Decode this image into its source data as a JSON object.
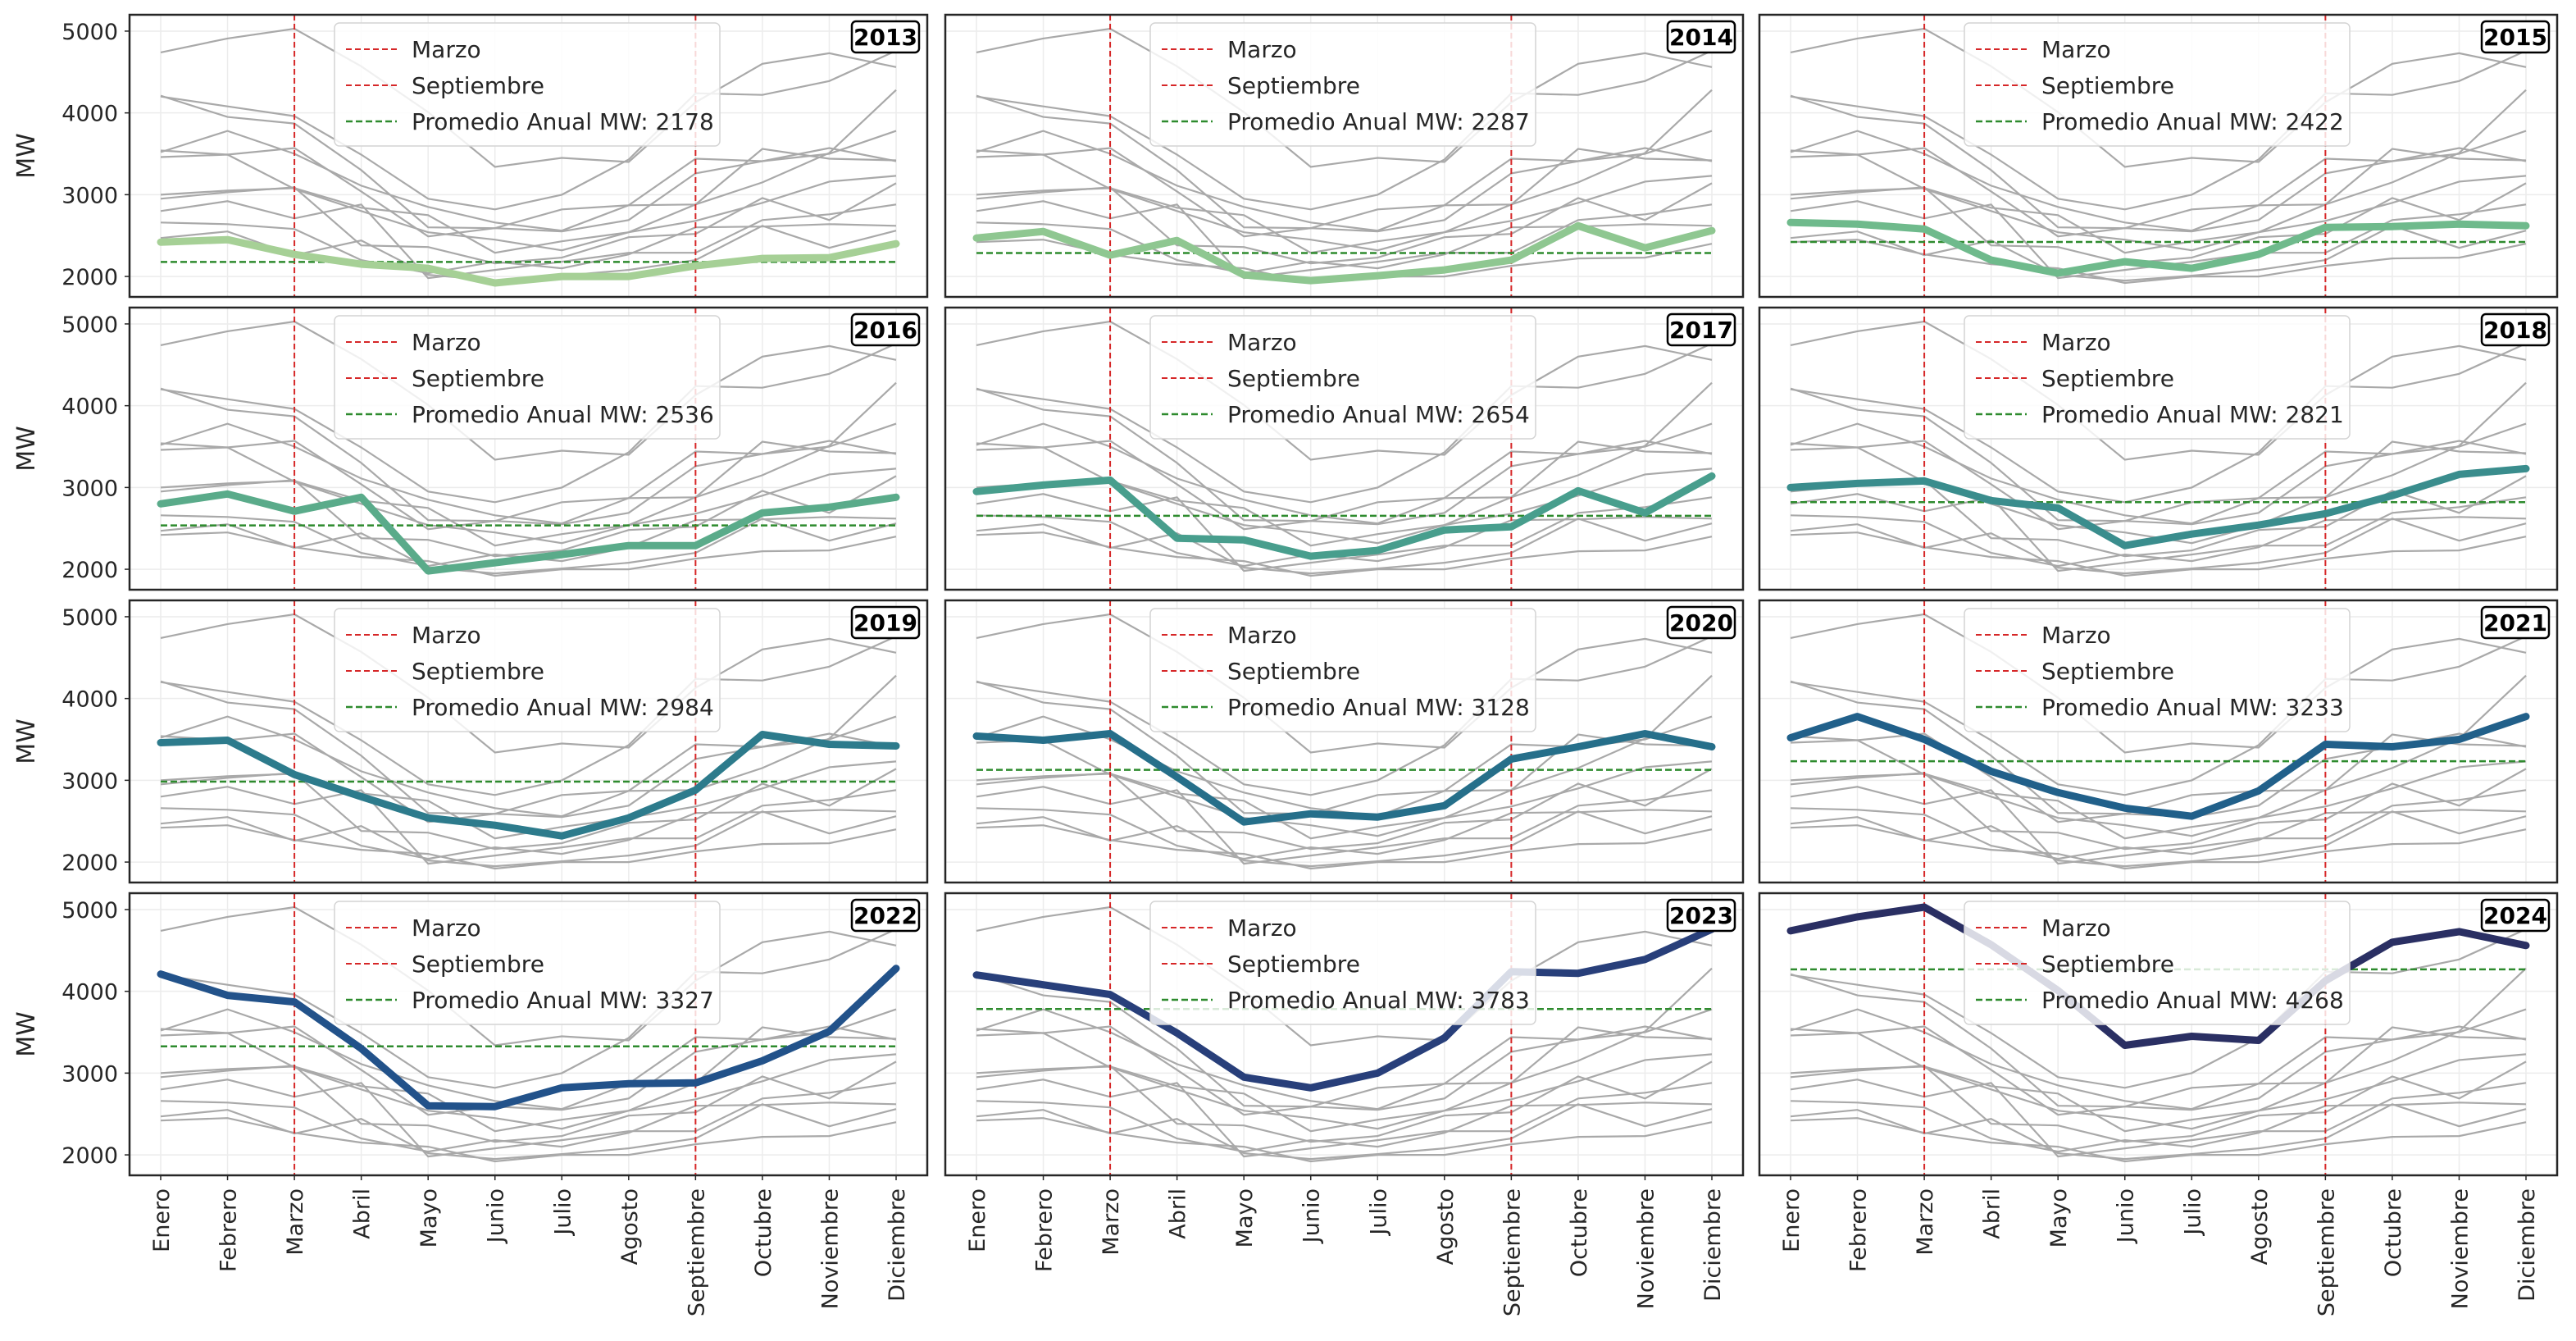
{
  "chart_data": {
    "type": "line",
    "ylabel": "MW",
    "ylim": [
      1750,
      5200
    ],
    "yticks": [
      2000,
      3000,
      4000,
      5000
    ],
    "categories": [
      "Enero",
      "Febrero",
      "Marzo",
      "Abril",
      "Mayo",
      "Junio",
      "Julio",
      "Agosto",
      "Septiembre",
      "Octubre",
      "Noviembre",
      "Diciembre"
    ],
    "vlines": [
      {
        "category": "Marzo",
        "label": "Marzo",
        "color": "#d62728"
      },
      {
        "category": "Septiembre",
        "label": "Septiembre",
        "color": "#d62728"
      }
    ],
    "mean_label_prefix": "Promedio Anual MW:",
    "mean_color": "#2e8b2e",
    "background_line_color": "#a9a9a9",
    "grid": true,
    "legend_placement": "upper-center",
    "layout": "4x3",
    "series": [
      {
        "name": "2013",
        "mean": 2178,
        "color": "#a6d096",
        "values": [
          2420,
          2450,
          2270,
          2150,
          2100,
          1920,
          2000,
          2000,
          2130,
          2220,
          2230,
          2400
        ]
      },
      {
        "name": "2014",
        "mean": 2287,
        "color": "#8fc791",
        "values": [
          2470,
          2550,
          2260,
          2440,
          2020,
          1950,
          2010,
          2080,
          2200,
          2620,
          2350,
          2560
        ]
      },
      {
        "name": "2015",
        "mean": 2422,
        "color": "#6fba8c",
        "values": [
          2660,
          2640,
          2580,
          2200,
          2040,
          2180,
          2100,
          2270,
          2600,
          2610,
          2640,
          2620
        ]
      },
      {
        "name": "2016",
        "mean": 2536,
        "color": "#5aab8a",
        "values": [
          2800,
          2920,
          2710,
          2880,
          1980,
          2080,
          2180,
          2290,
          2290,
          2690,
          2760,
          2880
        ]
      },
      {
        "name": "2017",
        "mean": 2654,
        "color": "#489e8d",
        "values": [
          2950,
          3030,
          3090,
          2380,
          2360,
          2160,
          2230,
          2480,
          2520,
          2960,
          2690,
          3140
        ]
      },
      {
        "name": "2018",
        "mean": 2821,
        "color": "#3a8d8d",
        "values": [
          3000,
          3050,
          3080,
          2840,
          2750,
          2290,
          2430,
          2540,
          2680,
          2900,
          3160,
          3230
        ]
      },
      {
        "name": "2019",
        "mean": 2984,
        "color": "#2d7b8c",
        "values": [
          3460,
          3490,
          3070,
          2800,
          2540,
          2450,
          2320,
          2540,
          2880,
          3560,
          3440,
          3420
        ]
      },
      {
        "name": "2020",
        "mean": 3128,
        "color": "#266f8a",
        "values": [
          3540,
          3490,
          3570,
          3040,
          2490,
          2590,
          2550,
          2690,
          3260,
          3410,
          3570,
          3410
        ]
      },
      {
        "name": "2021",
        "mean": 3233,
        "color": "#21608a",
        "values": [
          3520,
          3780,
          3500,
          3110,
          2850,
          2660,
          2560,
          2870,
          3440,
          3410,
          3500,
          3780
        ]
      },
      {
        "name": "2022",
        "mean": 3327,
        "color": "#22528a",
        "values": [
          4210,
          3950,
          3870,
          3300,
          2600,
          2590,
          2820,
          2870,
          2880,
          3150,
          3510,
          4280
        ]
      },
      {
        "name": "2023",
        "mean": 3783,
        "color": "#283f7a",
        "values": [
          4200,
          4080,
          3960,
          3490,
          2950,
          2820,
          3000,
          3430,
          4240,
          4220,
          4390,
          4760
        ]
      },
      {
        "name": "2024",
        "mean": 4268,
        "color": "#2a2f63",
        "values": [
          4740,
          4910,
          5030,
          4570,
          4010,
          3340,
          3450,
          3400,
          4130,
          4600,
          4730,
          4560
        ]
      }
    ]
  }
}
